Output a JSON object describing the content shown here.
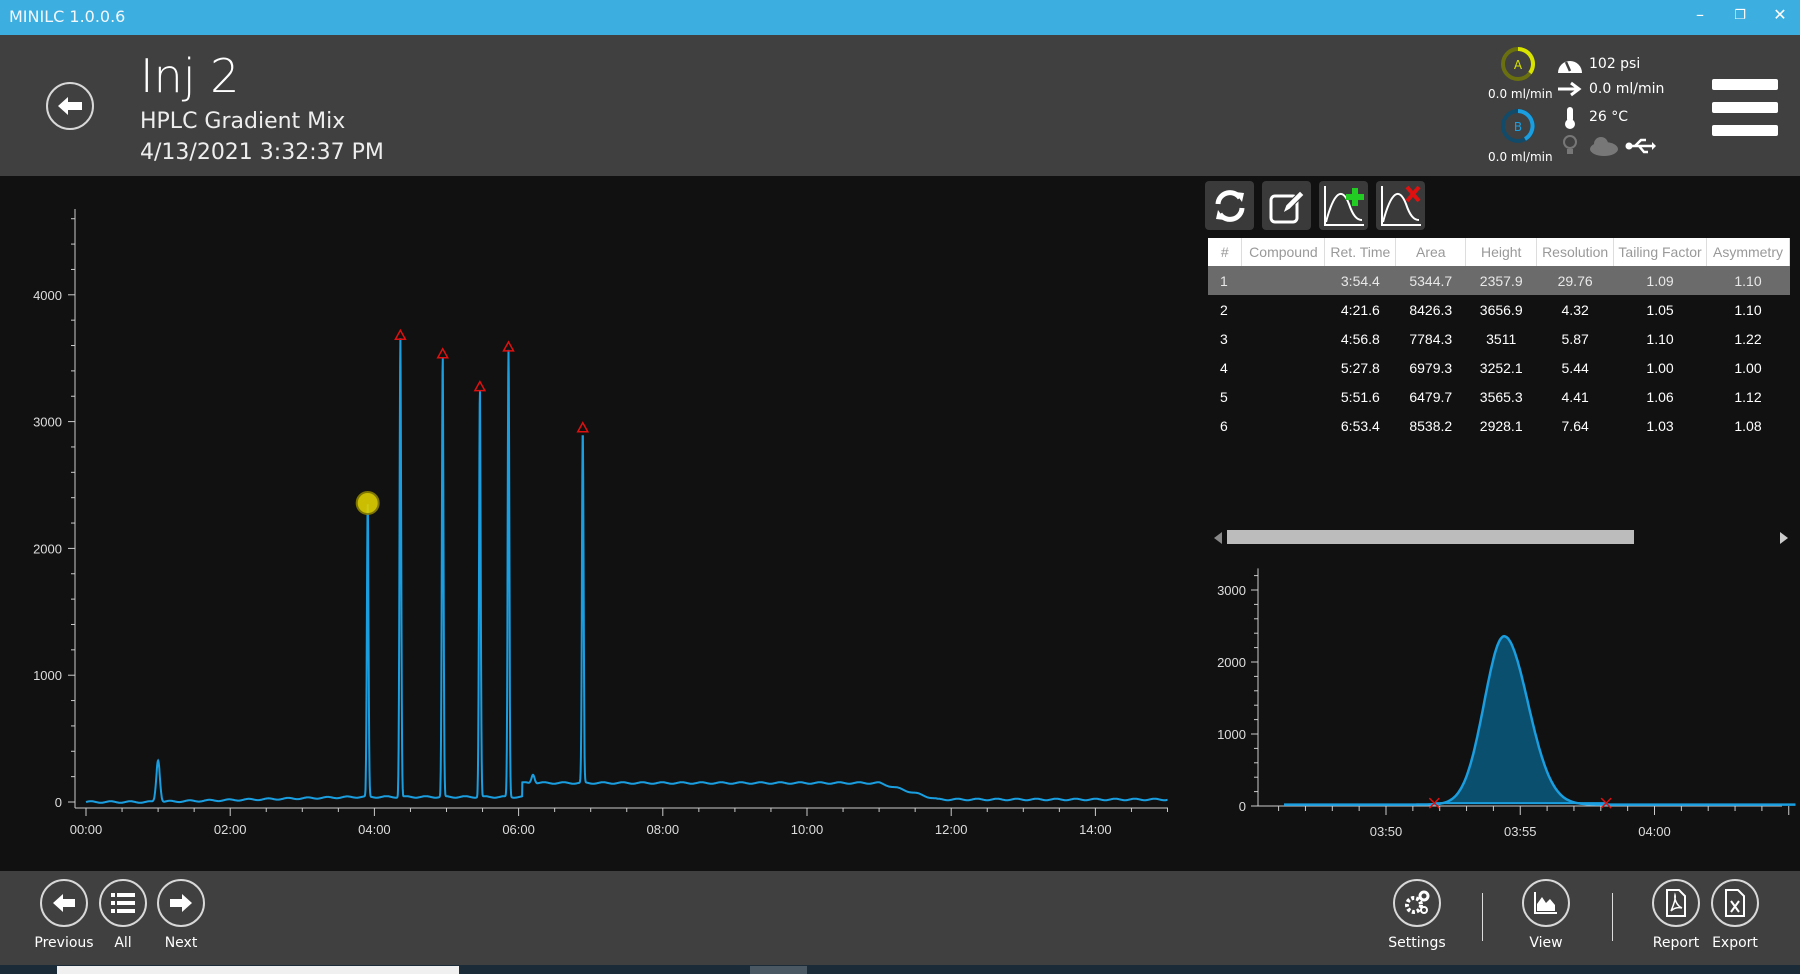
{
  "window": {
    "title": "MINILC 1.0.0.6",
    "controls": [
      "minimize",
      "restore",
      "close"
    ]
  },
  "header": {
    "title": "Inj 2",
    "method": "HPLC Gradient Mix",
    "datetime": "4/13/2021 3:32:37 PM",
    "pump_a": {
      "label": "A",
      "flow": "0.0 ml/min",
      "color": "#c8d400"
    },
    "pump_b": {
      "label": "B",
      "flow": "0.0 ml/min",
      "color": "#1a9ee0"
    },
    "pressure": "102 psi",
    "flow": "0.0 ml/min",
    "temperature": "26 °C"
  },
  "toolbar": {
    "icons": [
      "refresh-icon",
      "edit-icon",
      "add-peak-icon",
      "remove-peak-icon"
    ]
  },
  "table": {
    "columns": [
      "#",
      "Compound",
      "Ret. Time",
      "Area",
      "Height",
      "Resolution",
      "Tailing Factor",
      "Asymmetry"
    ],
    "rows": [
      [
        "1",
        "",
        "3:54.4",
        "5344.7",
        "2357.9",
        "29.76",
        "1.09",
        "1.10"
      ],
      [
        "2",
        "",
        "4:21.6",
        "8426.3",
        "3656.9",
        "4.32",
        "1.05",
        "1.10"
      ],
      [
        "3",
        "",
        "4:56.8",
        "7784.3",
        "3511",
        "5.87",
        "1.10",
        "1.22"
      ],
      [
        "4",
        "",
        "5:27.8",
        "6979.3",
        "3252.1",
        "5.44",
        "1.00",
        "1.00"
      ],
      [
        "5",
        "",
        "5:51.6",
        "6479.7",
        "3565.3",
        "4.41",
        "1.06",
        "1.12"
      ],
      [
        "6",
        "",
        "6:53.4",
        "8538.2",
        "2928.1",
        "7.64",
        "1.03",
        "1.08"
      ]
    ],
    "selected_row": 0
  },
  "bottom": {
    "previous": "Previous",
    "all": "All",
    "next": "Next",
    "settings": "Settings",
    "view": "View",
    "report": "Report",
    "export": "Export"
  },
  "chart_data": [
    {
      "type": "line",
      "title": "",
      "xlabel": "",
      "ylabel": "",
      "xlim_min": [
        0,
        15
      ],
      "ylim": [
        0,
        4700
      ],
      "xticks": [
        "00:00",
        "02:00",
        "04:00",
        "06:00",
        "08:00",
        "10:00",
        "12:00",
        "14:00"
      ],
      "yticks": [
        "0",
        "1000",
        "2000",
        "3000",
        "4000"
      ],
      "line_color": "#1a9ee0",
      "peaks": [
        {
          "t_min": 3.907,
          "height": 2357.9,
          "selected": true
        },
        {
          "t_min": 4.36,
          "height": 3656.9
        },
        {
          "t_min": 4.947,
          "height": 3511
        },
        {
          "t_min": 5.463,
          "height": 3252.1
        },
        {
          "t_min": 5.86,
          "height": 3565.3
        },
        {
          "t_min": 6.89,
          "height": 2928.1
        }
      ],
      "marker_colors": {
        "peak": "#e01010",
        "selected": "#e0d000"
      }
    },
    {
      "type": "area",
      "title": "",
      "xlim_s": [
        226,
        245
      ],
      "ylim": [
        0,
        3300
      ],
      "xticks": [
        "03:50",
        "03:55",
        "04:00"
      ],
      "yticks": [
        "0",
        "1000",
        "2000",
        "3000"
      ],
      "peak": {
        "t_s": 234.4,
        "height": 2357.9,
        "start_s": 231.8,
        "end_s": 238.2
      },
      "fill_color": "#0b4f6e",
      "line_color": "#1a9ee0"
    }
  ]
}
